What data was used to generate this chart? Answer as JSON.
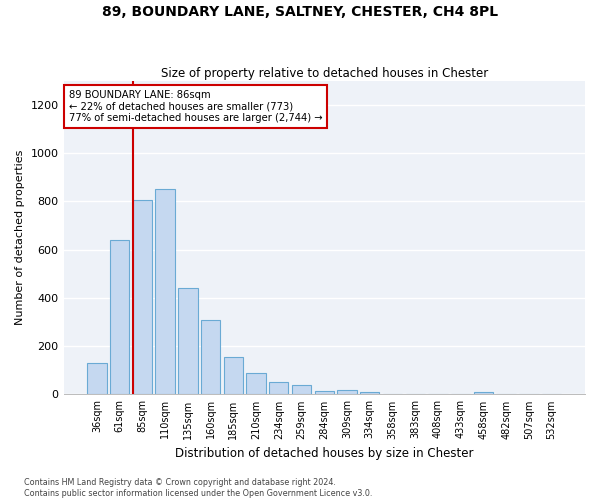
{
  "title": "89, BOUNDARY LANE, SALTNEY, CHESTER, CH4 8PL",
  "subtitle": "Size of property relative to detached houses in Chester",
  "xlabel": "Distribution of detached houses by size in Chester",
  "ylabel": "Number of detached properties",
  "bar_color": "#c5d8f0",
  "bar_edge_color": "#6aaad4",
  "background_color": "#eef2f8",
  "grid_color": "#ffffff",
  "annotation_box_color": "#cc0000",
  "marker_line_color": "#cc0000",
  "categories": [
    "36sqm",
    "61sqm",
    "85sqm",
    "110sqm",
    "135sqm",
    "160sqm",
    "185sqm",
    "210sqm",
    "234sqm",
    "259sqm",
    "284sqm",
    "309sqm",
    "334sqm",
    "358sqm",
    "383sqm",
    "408sqm",
    "433sqm",
    "458sqm",
    "482sqm",
    "507sqm",
    "532sqm"
  ],
  "values": [
    130,
    640,
    805,
    850,
    440,
    308,
    155,
    90,
    50,
    40,
    15,
    18,
    12,
    0,
    0,
    0,
    0,
    12,
    0,
    0,
    0
  ],
  "property_label": "89 BOUNDARY LANE: 86sqm",
  "annotation_line1": "← 22% of detached houses are smaller (773)",
  "annotation_line2": "77% of semi-detached houses are larger (2,744) →",
  "marker_bar_index": 2,
  "ylim": [
    0,
    1300
  ],
  "yticks": [
    0,
    200,
    400,
    600,
    800,
    1000,
    1200
  ],
  "footer_line1": "Contains HM Land Registry data © Crown copyright and database right 2024.",
  "footer_line2": "Contains public sector information licensed under the Open Government Licence v3.0."
}
